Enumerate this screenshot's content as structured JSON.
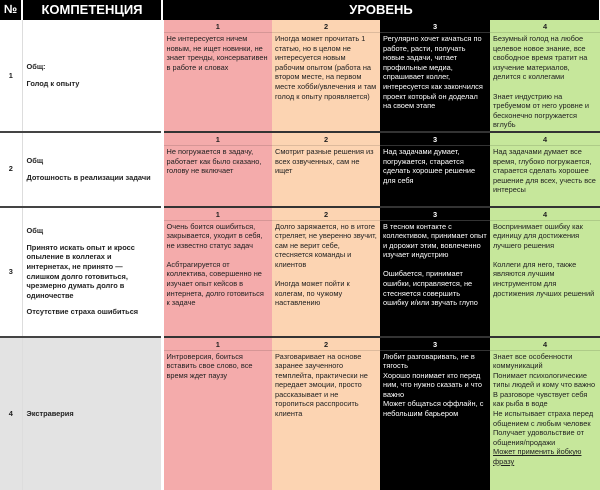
{
  "header": {
    "no": "№",
    "competence": "КОМПЕТЕНЦИЯ",
    "level": "УРОВЕНЬ"
  },
  "level_numbers": [
    "1",
    "2",
    "3",
    "4"
  ],
  "colors": {
    "level1": "#f4abab",
    "level2": "#fcd4b2",
    "level3": "#000000",
    "level4": "#c6e79b"
  },
  "rows": [
    {
      "no": "1",
      "category": "Общ:",
      "name": "Голод к опыту",
      "extra": "",
      "l1": [
        "Не интересуется ничем новым, не ищет новинки, не знает тренды, консервативен в работе и словах"
      ],
      "l2": [
        "Иногда может прочитать 1 статью, но в целом не интересуется новым рабочим опытом (работа на втором месте, на первом месте хобби/увлечения и там голод к опыту проявляется)"
      ],
      "l3": [
        "Регулярно хочет качаться по работе, расти, получать новые задачи, читает профильные медиа, спрашивает коллег, интересуется как закончился проект который он доделал на своем этапе"
      ],
      "l4": [
        "Безумный голод на любое целевое новое знание, все свободное время тратит на изучение материалов, делится с коллегами",
        "Знает индустрию на требуемом от него уровне и бесконечно погружается вглубь"
      ]
    },
    {
      "no": "2",
      "category": "Общ",
      "name": "Дотошность в реализации задачи",
      "extra": "",
      "l1": [
        "Не погружается в задачу, работает как было сказано, голову не включает"
      ],
      "l2": [
        "Смотрит разные решения из всех озвученных, сам не ищет"
      ],
      "l3": [
        "Над задачами думает, погружается, старается сделать хорошее решение для себя"
      ],
      "l4": [
        "Над задачами думает все время, глубоко погружается, старается сделать хорошее решение для всех, учесть все интересы"
      ]
    },
    {
      "no": "3",
      "category": "Общ",
      "name": "Принято искать опыт и кросс опыление в коллегах и интернетах, не принято — слишком долго готовиться, чрезмерно думать долго в одиночестве",
      "extra": "Отсутствие страха ошибиться",
      "l1": [
        "Очень боится ошибиться, закрывается, уходит в себя, не известно статус задач",
        "Асбтрагируется от коллектива, совершенно не изучает опыт кейсов в интернета, долго готовиться к задаче"
      ],
      "l2": [
        "Долго заряжается, но в итоге стреляет, не уверенно звучит, сам не верит себе, стесняется команды и клиентов",
        "Иногда может пойти к колегам, по чужому наставлению"
      ],
      "l3": [
        "В тесном контакте с коллективом, принимает опыт и дорожит этим, вовлеченно изучает индустрию",
        "Ошибается, принимает ошибки, исправляется, не стесняется совершить ошибку и/или звучать глупо"
      ],
      "l4": [
        "Воспринимает ошибку как единицу для достижения лучшего решения",
        "Коллеги для него, также являются лучшим инструментом для достижения лучших решений"
      ]
    },
    {
      "no": "4",
      "category": "",
      "name": "Экстраверия",
      "extra": "",
      "l1": [
        "Интроверсия, боиться вставить свое слово, все время ждет паузу"
      ],
      "l2": [
        "Разговаривает на основе заранее заученного темплейта, практически не передает эмоции, просто рассказывает и не торопиться расспросить клиента"
      ],
      "l3lines": [
        "Любит разговаривать, не в тягость",
        "Хорошо понимает кто перед ним, что нужно сказать и что важно",
        "Может общаться оффлайн, с небольшим барьером"
      ],
      "l4lines": [
        "Знает все особенности коммуникаций",
        "Понимает психологические типы людей и кому что важно",
        "В разговоре чувствует себя как рыба в воде",
        "Не испытывает страха перед общением с любым человек",
        "Получает удовольствие от общения/продажи",
        "Может применить йобкую фразу"
      ]
    }
  ]
}
